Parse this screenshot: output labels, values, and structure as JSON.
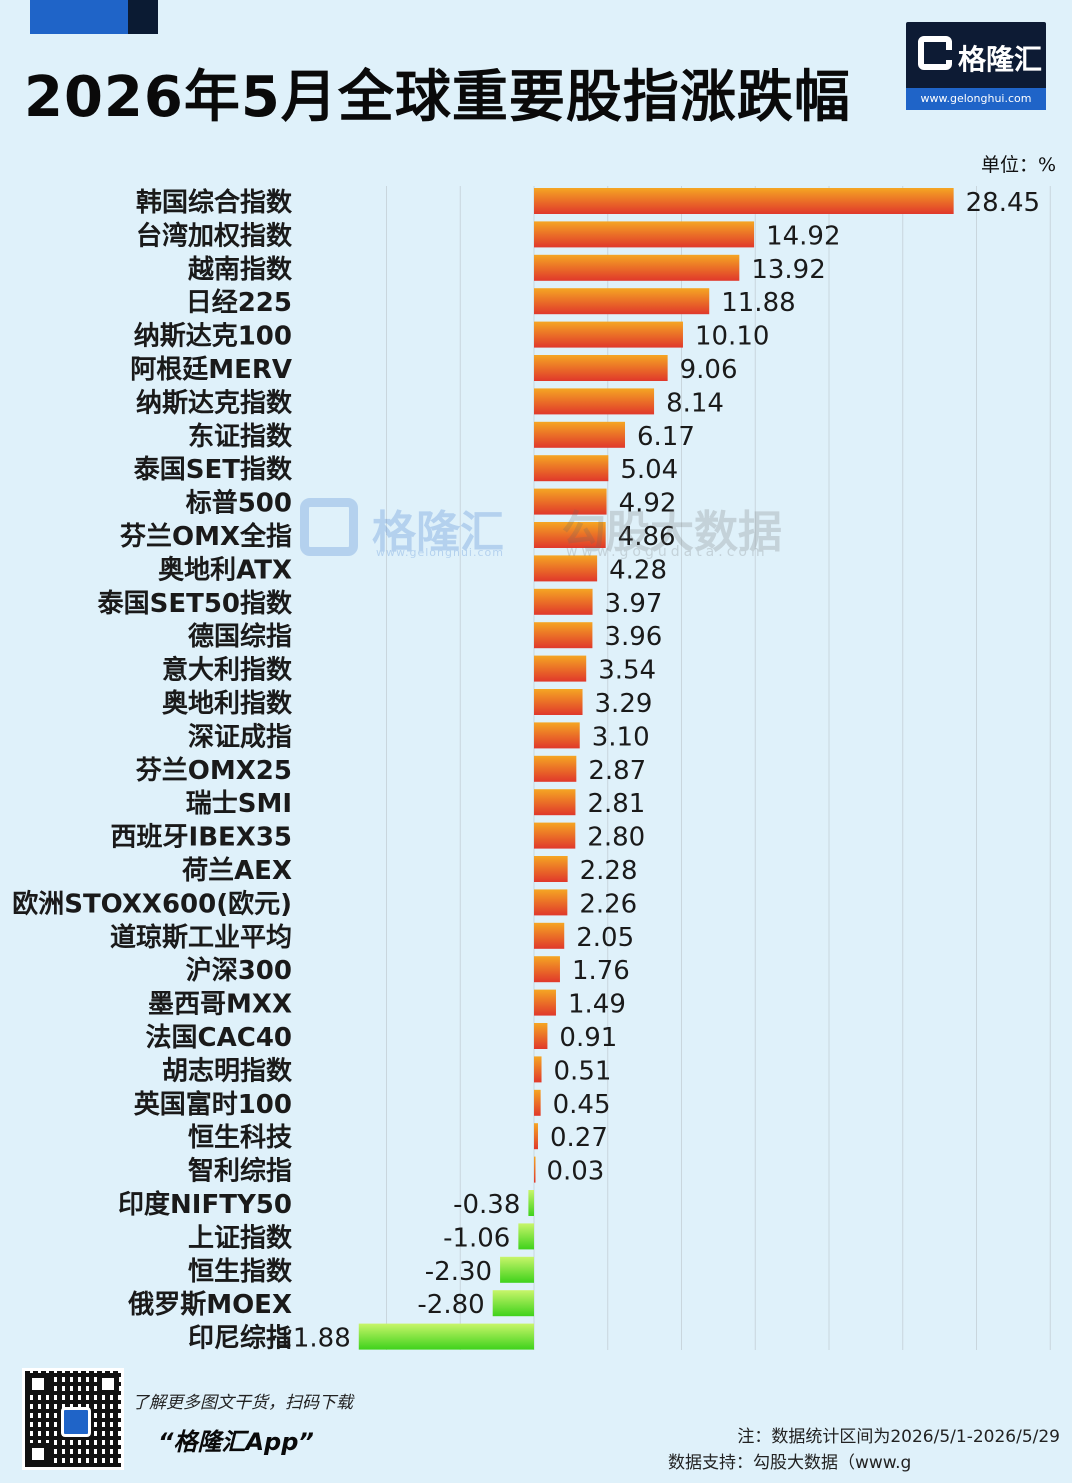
{
  "header": {
    "title": "2026年5月全球重要股指涨跌幅",
    "unit": "单位：%"
  },
  "logo": {
    "name": "格隆汇",
    "url": "www.gelonghui.com"
  },
  "watermark": {
    "brand1": "格隆汇",
    "brand1_url": "www.gelonghui.com",
    "brand2": "勾股大数据",
    "brand2_url": "www.gogudata.com"
  },
  "footer": {
    "tagline": "了解更多图文干货，扫码下载",
    "app": "“格隆汇App”",
    "note": "注：数据统计区间为2026/5/1-2026/5/29",
    "source": "数据支持：勾股大数据（www.g"
  },
  "colors": {
    "positive_start": "#f5a623",
    "positive_end": "#e0382b",
    "negative_start": "#c8f56a",
    "negative_end": "#3fd21b"
  },
  "chart_data": {
    "type": "bar",
    "orientation": "horizontal",
    "title": "2026年5月全球重要股指涨跌幅",
    "unit": "%",
    "grid": true,
    "categories": [
      "韩国综合指数",
      "台湾加权指数",
      "越南指数",
      "日经225",
      "纳斯达克100",
      "阿根廷MERV",
      "纳斯达克指数",
      "东证指数",
      "泰国SET指数",
      "标普500",
      "芬兰OMX全指",
      "奥地利ATX",
      "泰国SET50指数",
      "德国综指",
      "意大利指数",
      "奥地利指数",
      "深证成指",
      "芬兰OMX25",
      "瑞士SMI",
      "西班牙IBEX35",
      "荷兰AEX",
      "欧洲STOXX600(欧元)",
      "道琼斯工业平均",
      "沪深300",
      "墨西哥MXX",
      "法国CAC40",
      "胡志明指数",
      "英国富时100",
      "恒生科技",
      "智利综指",
      "印度NIFTY50",
      "上证指数",
      "恒生指数",
      "俄罗斯MOEX",
      "印尼综指"
    ],
    "values": [
      28.45,
      14.92,
      13.92,
      11.88,
      10.1,
      9.06,
      8.14,
      6.17,
      5.04,
      4.92,
      4.86,
      4.28,
      3.97,
      3.96,
      3.54,
      3.29,
      3.1,
      2.87,
      2.81,
      2.8,
      2.28,
      2.26,
      2.05,
      1.76,
      1.49,
      0.91,
      0.51,
      0.45,
      0.27,
      0.03,
      -0.38,
      -1.06,
      -2.3,
      -2.8,
      -11.88
    ],
    "labels": [
      "28.45",
      "14.92",
      "13.92",
      "11.88",
      "10.10",
      "9.06",
      "8.14",
      "6.17",
      "5.04",
      "4.92",
      "4.86",
      "4.28",
      "3.97",
      "3.96",
      "3.54",
      "3.29",
      "3.10",
      "2.87",
      "2.81",
      "2.80",
      "2.28",
      "2.26",
      "2.05",
      "1.76",
      "1.49",
      "0.91",
      "0.51",
      "0.45",
      "0.27",
      "0.03",
      "-0.38",
      "-1.06",
      "-2.30",
      "-2.80",
      "-11.88"
    ],
    "xlim": [
      -12,
      35
    ]
  }
}
